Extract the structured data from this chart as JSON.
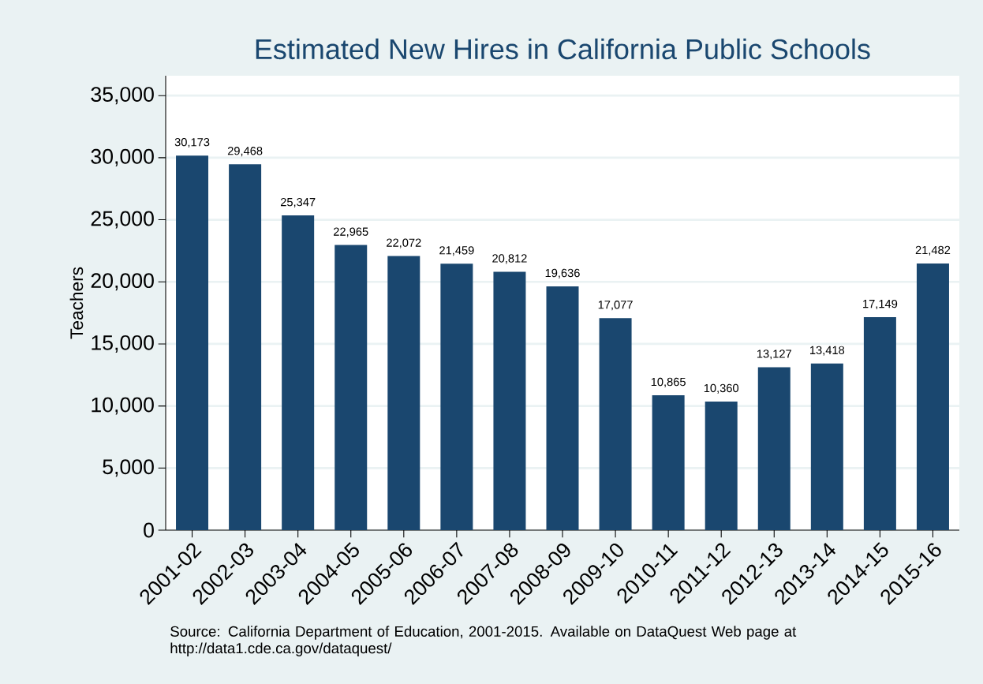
{
  "chart_data": {
    "type": "bar",
    "title": "Estimated New Hires in California Public Schools",
    "ylabel": "Teachers",
    "categories": [
      "2001-02",
      "2002-03",
      "2003-04",
      "2004-05",
      "2005-06",
      "2006-07",
      "2007-08",
      "2008-09",
      "2009-10",
      "2010-11",
      "2011-12",
      "2012-13",
      "2013-14",
      "2014-15",
      "2015-16"
    ],
    "values": [
      30173,
      29468,
      25347,
      22965,
      22072,
      21459,
      20812,
      19636,
      17077,
      10865,
      10360,
      13127,
      13418,
      17149,
      21482
    ],
    "value_labels": [
      "30,173",
      "29,468",
      "25,347",
      "22,965",
      "22,072",
      "21,459",
      "20,812",
      "19,636",
      "17,077",
      "10,865",
      "10,360",
      "13,127",
      "13,418",
      "17,149",
      "21,482"
    ],
    "color": "#1a476f",
    "ylim": [
      0,
      36600
    ],
    "yticks": [
      {
        "value": 0,
        "label": "0"
      },
      {
        "value": 5000,
        "label": "5,000"
      },
      {
        "value": 10000,
        "label": "10,000"
      },
      {
        "value": 15000,
        "label": "15,000"
      },
      {
        "value": 20000,
        "label": "20,000"
      },
      {
        "value": 25000,
        "label": "25,000"
      },
      {
        "value": 30000,
        "label": "30,000"
      },
      {
        "value": 35000,
        "label": "35,000"
      }
    ],
    "grid": "y",
    "annotations": [
      "Source: California Department of Education, 2001-2015. Available on DataQuest Web page at http://data1.cde.ca.gov/dataquest/"
    ]
  }
}
